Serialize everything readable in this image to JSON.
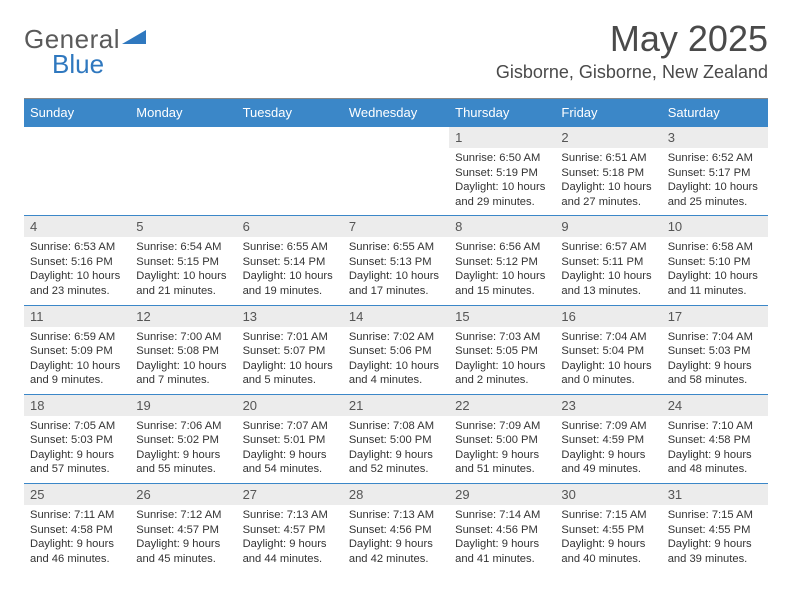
{
  "brand": {
    "part1": "General",
    "part2": "Blue"
  },
  "title": "May 2025",
  "location": "Gisborne, Gisborne, New Zealand",
  "colors": {
    "header_bg": "#3b87c8",
    "header_text": "#ffffff",
    "daynum_bg": "#ececec",
    "row_divider": "#3b87c8",
    "brand_blue": "#2f78bf"
  },
  "weekdays": [
    "Sunday",
    "Monday",
    "Tuesday",
    "Wednesday",
    "Thursday",
    "Friday",
    "Saturday"
  ],
  "weeks": [
    [
      null,
      null,
      null,
      null,
      {
        "n": "1",
        "sr": "6:50 AM",
        "ss": "5:19 PM",
        "dl": "10 hours and 29 minutes."
      },
      {
        "n": "2",
        "sr": "6:51 AM",
        "ss": "5:18 PM",
        "dl": "10 hours and 27 minutes."
      },
      {
        "n": "3",
        "sr": "6:52 AM",
        "ss": "5:17 PM",
        "dl": "10 hours and 25 minutes."
      }
    ],
    [
      {
        "n": "4",
        "sr": "6:53 AM",
        "ss": "5:16 PM",
        "dl": "10 hours and 23 minutes."
      },
      {
        "n": "5",
        "sr": "6:54 AM",
        "ss": "5:15 PM",
        "dl": "10 hours and 21 minutes."
      },
      {
        "n": "6",
        "sr": "6:55 AM",
        "ss": "5:14 PM",
        "dl": "10 hours and 19 minutes."
      },
      {
        "n": "7",
        "sr": "6:55 AM",
        "ss": "5:13 PM",
        "dl": "10 hours and 17 minutes."
      },
      {
        "n": "8",
        "sr": "6:56 AM",
        "ss": "5:12 PM",
        "dl": "10 hours and 15 minutes."
      },
      {
        "n": "9",
        "sr": "6:57 AM",
        "ss": "5:11 PM",
        "dl": "10 hours and 13 minutes."
      },
      {
        "n": "10",
        "sr": "6:58 AM",
        "ss": "5:10 PM",
        "dl": "10 hours and 11 minutes."
      }
    ],
    [
      {
        "n": "11",
        "sr": "6:59 AM",
        "ss": "5:09 PM",
        "dl": "10 hours and 9 minutes."
      },
      {
        "n": "12",
        "sr": "7:00 AM",
        "ss": "5:08 PM",
        "dl": "10 hours and 7 minutes."
      },
      {
        "n": "13",
        "sr": "7:01 AM",
        "ss": "5:07 PM",
        "dl": "10 hours and 5 minutes."
      },
      {
        "n": "14",
        "sr": "7:02 AM",
        "ss": "5:06 PM",
        "dl": "10 hours and 4 minutes."
      },
      {
        "n": "15",
        "sr": "7:03 AM",
        "ss": "5:05 PM",
        "dl": "10 hours and 2 minutes."
      },
      {
        "n": "16",
        "sr": "7:04 AM",
        "ss": "5:04 PM",
        "dl": "10 hours and 0 minutes."
      },
      {
        "n": "17",
        "sr": "7:04 AM",
        "ss": "5:03 PM",
        "dl": "9 hours and 58 minutes."
      }
    ],
    [
      {
        "n": "18",
        "sr": "7:05 AM",
        "ss": "5:03 PM",
        "dl": "9 hours and 57 minutes."
      },
      {
        "n": "19",
        "sr": "7:06 AM",
        "ss": "5:02 PM",
        "dl": "9 hours and 55 minutes."
      },
      {
        "n": "20",
        "sr": "7:07 AM",
        "ss": "5:01 PM",
        "dl": "9 hours and 54 minutes."
      },
      {
        "n": "21",
        "sr": "7:08 AM",
        "ss": "5:00 PM",
        "dl": "9 hours and 52 minutes."
      },
      {
        "n": "22",
        "sr": "7:09 AM",
        "ss": "5:00 PM",
        "dl": "9 hours and 51 minutes."
      },
      {
        "n": "23",
        "sr": "7:09 AM",
        "ss": "4:59 PM",
        "dl": "9 hours and 49 minutes."
      },
      {
        "n": "24",
        "sr": "7:10 AM",
        "ss": "4:58 PM",
        "dl": "9 hours and 48 minutes."
      }
    ],
    [
      {
        "n": "25",
        "sr": "7:11 AM",
        "ss": "4:58 PM",
        "dl": "9 hours and 46 minutes."
      },
      {
        "n": "26",
        "sr": "7:12 AM",
        "ss": "4:57 PM",
        "dl": "9 hours and 45 minutes."
      },
      {
        "n": "27",
        "sr": "7:13 AM",
        "ss": "4:57 PM",
        "dl": "9 hours and 44 minutes."
      },
      {
        "n": "28",
        "sr": "7:13 AM",
        "ss": "4:56 PM",
        "dl": "9 hours and 42 minutes."
      },
      {
        "n": "29",
        "sr": "7:14 AM",
        "ss": "4:56 PM",
        "dl": "9 hours and 41 minutes."
      },
      {
        "n": "30",
        "sr": "7:15 AM",
        "ss": "4:55 PM",
        "dl": "9 hours and 40 minutes."
      },
      {
        "n": "31",
        "sr": "7:15 AM",
        "ss": "4:55 PM",
        "dl": "9 hours and 39 minutes."
      }
    ]
  ],
  "labels": {
    "sunrise": "Sunrise:",
    "sunset": "Sunset:",
    "daylight": "Daylight:"
  }
}
